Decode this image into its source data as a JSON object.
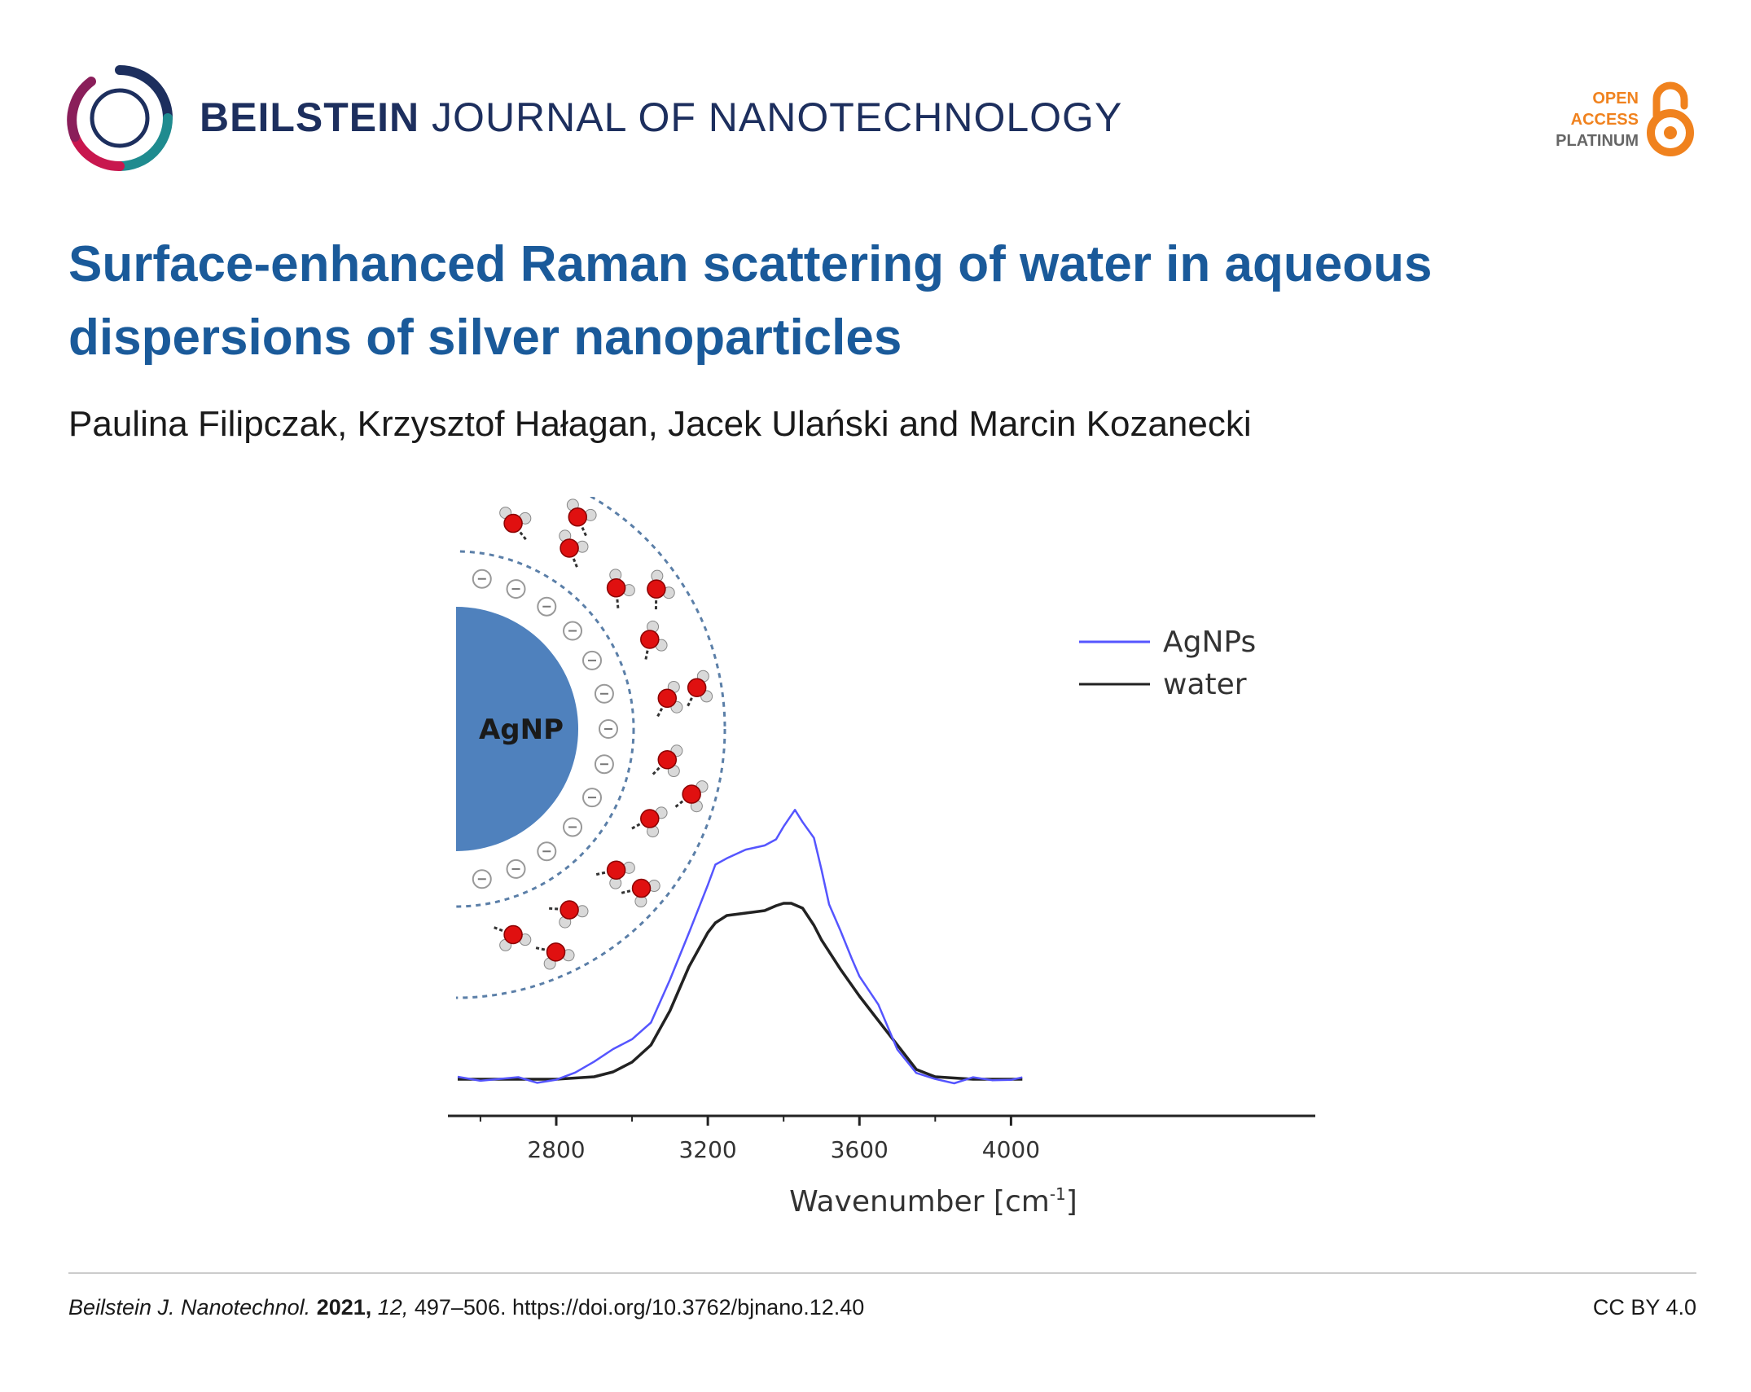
{
  "header": {
    "journal_name_bold": "BEILSTEIN",
    "journal_name_rest": "JOURNAL OF NANOTECHNOLOGY",
    "badge": {
      "line1": "OPEN",
      "line2": "ACCESS",
      "line3": "PLATINUM"
    }
  },
  "article": {
    "title": "Surface-enhanced Raman scattering of water in aqueous dispersions of silver nanoparticles",
    "authors": "Paulina Filipczak, Krzysztof Hałagan, Jacek Ulański and Marcin Kozanecki"
  },
  "figure": {
    "particle_label": "AgNP",
    "chart_data": {
      "type": "line",
      "xlabel_main": "Wavenumber [cm",
      "xlabel_sup": "-1",
      "xlabel_close": "]",
      "xlim": [
        2530,
        4100
      ],
      "xticks": [
        2800,
        3200,
        3600,
        4000
      ],
      "legend_position": "top-right",
      "grid": false,
      "series": [
        {
          "name": "AgNPs",
          "color": "#5555ff",
          "x": [
            2540,
            2600,
            2700,
            2750,
            2800,
            2850,
            2900,
            2950,
            3000,
            3050,
            3100,
            3150,
            3200,
            3220,
            3250,
            3300,
            3350,
            3380,
            3400,
            3430,
            3450,
            3480,
            3500,
            3520,
            3550,
            3580,
            3600,
            3650,
            3700,
            3750,
            3800,
            3850,
            3900,
            3950,
            4000,
            4030
          ],
          "y": [
            0.01,
            0.0,
            0.0,
            -0.01,
            0.0,
            0.02,
            0.08,
            0.12,
            0.16,
            0.24,
            0.4,
            0.6,
            0.8,
            0.87,
            0.91,
            0.94,
            0.95,
            0.99,
            1.03,
            1.1,
            1.06,
            0.98,
            0.86,
            0.72,
            0.6,
            0.5,
            0.42,
            0.3,
            0.13,
            0.02,
            0.0,
            -0.01,
            0.0,
            0.0,
            0.0,
            0.0
          ]
        },
        {
          "name": "water",
          "color": "#222222",
          "x": [
            2540,
            2600,
            2700,
            2800,
            2850,
            2900,
            2950,
            3000,
            3050,
            3100,
            3150,
            3200,
            3220,
            3250,
            3300,
            3350,
            3380,
            3400,
            3420,
            3450,
            3480,
            3500,
            3550,
            3600,
            3650,
            3700,
            3750,
            3800,
            3900,
            4000,
            4030
          ],
          "y": [
            0.0,
            0.0,
            0.0,
            0.0,
            0.005,
            0.01,
            0.03,
            0.07,
            0.14,
            0.28,
            0.46,
            0.6,
            0.64,
            0.67,
            0.68,
            0.69,
            0.71,
            0.72,
            0.72,
            0.7,
            0.63,
            0.57,
            0.45,
            0.34,
            0.24,
            0.14,
            0.04,
            0.01,
            0.0,
            0.0,
            0.0
          ]
        }
      ]
    }
  },
  "footer": {
    "journal_abbrev": "Beilstein J. Nanotechnol.",
    "year": "2021,",
    "volume": "12,",
    "pages_doi": "497–506. https://doi.org/10.3762/bjnano.12.40",
    "license": "CC BY 4.0"
  },
  "colors": {
    "title": "#1a5a9a",
    "journal_name": "#1d2f5e",
    "open_access": "#f0821e",
    "nanoparticle": "#4f81bd"
  }
}
